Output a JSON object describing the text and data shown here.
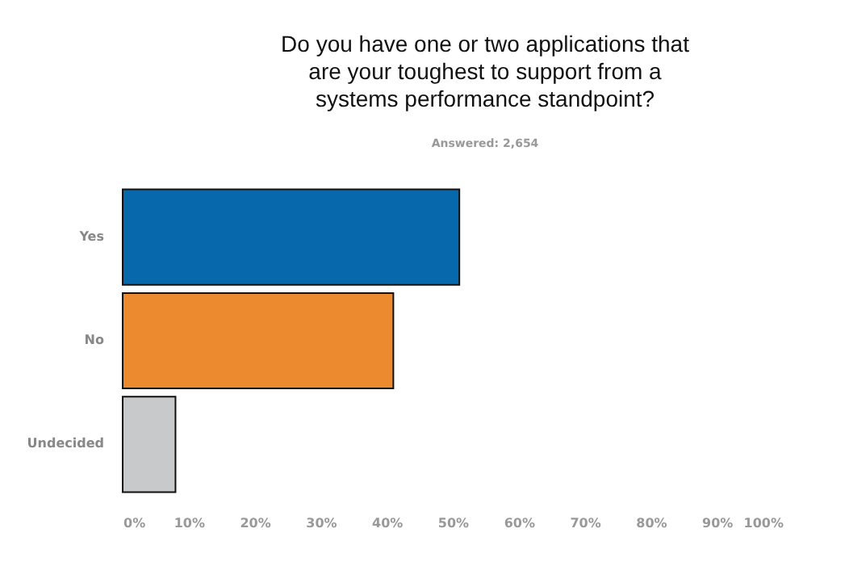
{
  "chart_data": {
    "type": "bar",
    "orientation": "horizontal",
    "title": "Do you have one or two applications that are your toughest to support from a systems performance standpoint?",
    "subtitle": "Answered: 2,654",
    "categories": [
      "Yes",
      "No",
      "Undecided"
    ],
    "values": [
      51,
      41,
      8
    ],
    "colors": [
      "#0868ac",
      "#ec8a2f",
      "#c8c9cb"
    ],
    "xlim": [
      0,
      100
    ],
    "xticks": [
      {
        "value": 0,
        "label": "0%"
      },
      {
        "value": 10,
        "label": "10%"
      },
      {
        "value": 20,
        "label": "20%"
      },
      {
        "value": 30,
        "label": "30%"
      },
      {
        "value": 40,
        "label": "40%"
      },
      {
        "value": 50,
        "label": "50%"
      },
      {
        "value": 60,
        "label": "60%"
      },
      {
        "value": 70,
        "label": "70%"
      },
      {
        "value": 80,
        "label": "80%"
      },
      {
        "value": 90,
        "label": "90%"
      },
      {
        "value": 100,
        "label": "100%"
      }
    ],
    "grid": false
  }
}
